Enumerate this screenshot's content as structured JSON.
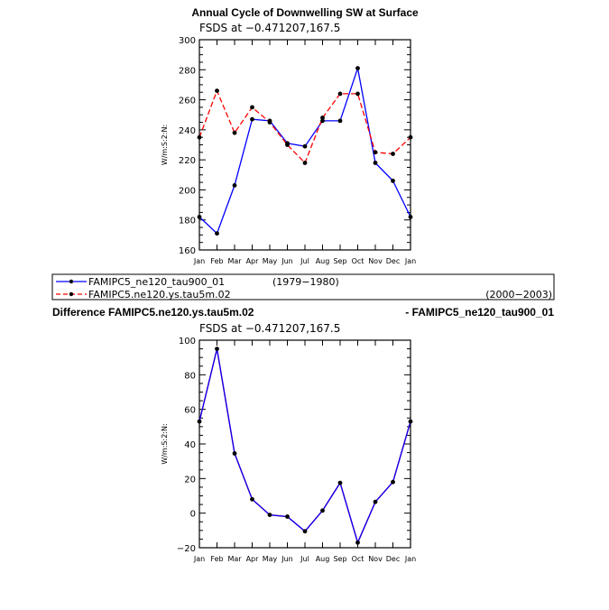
{
  "chart_data": [
    {
      "type": "line",
      "title": "Annual Cycle of Downwelling SW at Surface",
      "subtitle": "FSDS at −0.471207,167.5",
      "ylabel": "W/m:S:2:N:",
      "xlabel": "",
      "ylim": [
        160,
        300
      ],
      "yticks": [
        160,
        180,
        200,
        220,
        240,
        260,
        280,
        300
      ],
      "categories": [
        "Jan",
        "Feb",
        "Mar",
        "Apr",
        "May",
        "Jun",
        "Jul",
        "Aug",
        "Sep",
        "Oct",
        "Nov",
        "Dec",
        "Jan"
      ],
      "grid": false,
      "series": [
        {
          "name": "FAMIPC5_ne120_tau900_01",
          "period": "(1979−1980)",
          "color": "#0000ff",
          "dash": "solid",
          "values": [
            182,
            171,
            203,
            247,
            246,
            231,
            229,
            246,
            246,
            281,
            218,
            206,
            182
          ]
        },
        {
          "name": "FAMIPC5.ne120.ys.tau5m.02",
          "period": "(2000−2003)",
          "color": "#ff0000",
          "dash": "dashed",
          "values": [
            235,
            266,
            238,
            255,
            245,
            230,
            218,
            248,
            264,
            264,
            225,
            224,
            235
          ]
        }
      ]
    },
    {
      "type": "line",
      "title_left": "Difference FAMIPC5.ne120.ys.tau5m.02",
      "title_right": "- FAMIPC5_ne120_tau900_01",
      "subtitle": "FSDS at −0.471207,167.5",
      "ylabel": "W/m:S:2:N:",
      "xlabel": "",
      "ylim": [
        -20,
        100
      ],
      "yticks": [
        -20,
        0,
        20,
        40,
        60,
        80,
        100
      ],
      "categories": [
        "Jan",
        "Feb",
        "Mar",
        "Apr",
        "May",
        "Jun",
        "Jul",
        "Aug",
        "Sep",
        "Oct",
        "Nov",
        "Dec",
        "Jan"
      ],
      "grid": false,
      "series": [
        {
          "name": "",
          "color": "#0000ff",
          "overlay_color": "#ff0000",
          "values": [
            53,
            95,
            34.5,
            8,
            -1,
            -2,
            -10.5,
            1.5,
            17.5,
            -17,
            6.5,
            18,
            53
          ]
        }
      ]
    }
  ]
}
